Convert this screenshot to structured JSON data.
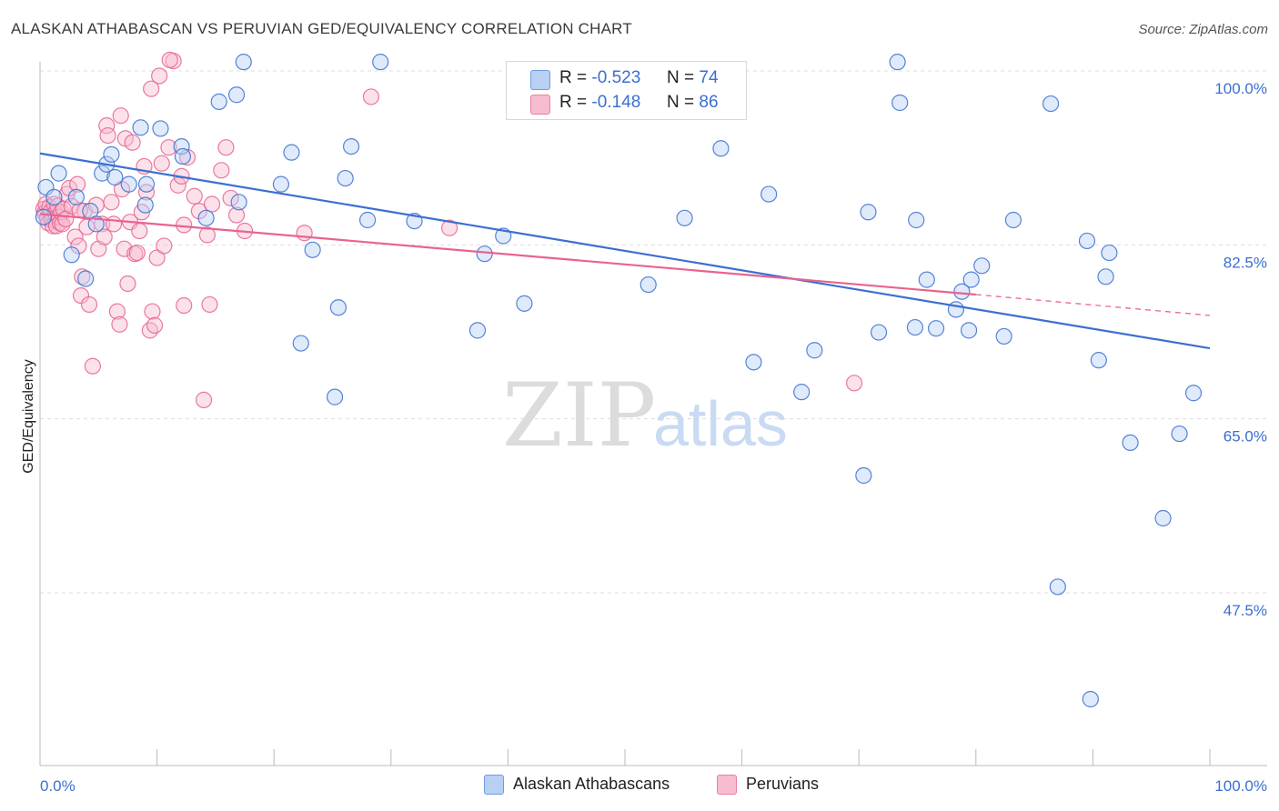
{
  "title": "ALASKAN ATHABASCAN VS PERUVIAN GED/EQUIVALENCY CORRELATION CHART",
  "source": "Source: ZipAtlas.com",
  "legend": {
    "rows": [
      {
        "r_label": "R =",
        "r_value": "-0.523",
        "n_label": "N =",
        "n_value": "74"
      },
      {
        "r_label": "R =",
        "r_value": "-0.148",
        "n_label": "N =",
        "n_value": "86"
      }
    ]
  },
  "bottom_legend": {
    "a": "Alaskan Athabascans",
    "b": "Peruvians"
  },
  "watermark": {
    "zip": "ZIP",
    "atlas": "atlas"
  },
  "colors": {
    "blue": "#3b6fd0",
    "blue_fill": "#b7d0f3",
    "pink": "#e8638f",
    "pink_fill": "#f7bcd0",
    "grid": "#dddddd"
  },
  "chart_data": {
    "type": "scatter",
    "title": "ALASKAN ATHABASCAN VS PERUVIAN GED/EQUIVALENCY CORRELATION CHART",
    "xlabel": "",
    "ylabel": "GED/Equivalency",
    "xlim": [
      0,
      100
    ],
    "ylim": [
      29.5,
      101.5
    ],
    "x_tick_labels": [
      "0.0%",
      "100.0%"
    ],
    "y_ticks": [
      100.0,
      82.5,
      65.0,
      47.5
    ],
    "y_tick_labels": [
      "100.0%",
      "82.5%",
      "65.0%",
      "47.5%"
    ],
    "grid": true,
    "legend_placement": "top-center",
    "series": [
      {
        "name": "Alaskan Athabascans",
        "r": -0.523,
        "n": 74,
        "trend": {
          "x": [
            0,
            100
          ],
          "y": [
            91.7,
            72.1
          ]
        },
        "points": [
          [
            0.3,
            85.3
          ],
          [
            0.5,
            88.3
          ],
          [
            1.2,
            87.3
          ],
          [
            1.6,
            89.7
          ],
          [
            2.7,
            81.5
          ],
          [
            3.1,
            87.3
          ],
          [
            3.9,
            79.1
          ],
          [
            4.3,
            85.9
          ],
          [
            4.8,
            84.6
          ],
          [
            5.3,
            89.7
          ],
          [
            5.7,
            90.6
          ],
          [
            6.1,
            91.6
          ],
          [
            6.4,
            89.3
          ],
          [
            7.6,
            88.6
          ],
          [
            8.6,
            94.3
          ],
          [
            9.0,
            86.5
          ],
          [
            9.1,
            88.6
          ],
          [
            10.3,
            94.2
          ],
          [
            12.1,
            92.4
          ],
          [
            12.2,
            91.4
          ],
          [
            14.2,
            85.2
          ],
          [
            15.3,
            96.9
          ],
          [
            16.8,
            97.6
          ],
          [
            17.0,
            86.8
          ],
          [
            17.4,
            100.9
          ],
          [
            20.6,
            88.6
          ],
          [
            21.5,
            91.8
          ],
          [
            22.3,
            72.6
          ],
          [
            23.3,
            82.0
          ],
          [
            25.2,
            67.2
          ],
          [
            25.5,
            76.2
          ],
          [
            26.1,
            89.2
          ],
          [
            26.6,
            92.4
          ],
          [
            28.0,
            85.0
          ],
          [
            29.1,
            100.9
          ],
          [
            32.0,
            84.9
          ],
          [
            37.4,
            73.9
          ],
          [
            38.0,
            81.6
          ],
          [
            39.6,
            83.4
          ],
          [
            41.4,
            76.6
          ],
          [
            52.0,
            78.5
          ],
          [
            55.1,
            85.2
          ],
          [
            58.2,
            92.2
          ],
          [
            61.0,
            70.7
          ],
          [
            62.3,
            87.6
          ],
          [
            65.1,
            67.7
          ],
          [
            66.2,
            71.9
          ],
          [
            70.4,
            59.3
          ],
          [
            70.8,
            85.8
          ],
          [
            71.7,
            73.7
          ],
          [
            73.3,
            100.9
          ],
          [
            73.5,
            96.8
          ],
          [
            74.8,
            74.2
          ],
          [
            74.9,
            85.0
          ],
          [
            75.8,
            79.0
          ],
          [
            76.6,
            74.1
          ],
          [
            78.3,
            76.0
          ],
          [
            78.8,
            77.8
          ],
          [
            79.4,
            73.9
          ],
          [
            79.6,
            79.0
          ],
          [
            80.5,
            80.4
          ],
          [
            82.4,
            73.3
          ],
          [
            83.2,
            85.0
          ],
          [
            86.4,
            96.7
          ],
          [
            87.0,
            48.1
          ],
          [
            89.5,
            82.9
          ],
          [
            89.8,
            36.8
          ],
          [
            90.5,
            70.9
          ],
          [
            91.1,
            79.3
          ],
          [
            91.4,
            81.7
          ],
          [
            93.2,
            62.6
          ],
          [
            97.4,
            63.5
          ],
          [
            98.6,
            67.6
          ],
          [
            96.0,
            55.0
          ]
        ]
      },
      {
        "name": "Peruvians",
        "r": -0.148,
        "n": 86,
        "trend": {
          "x": [
            0,
            80
          ],
          "y": [
            85.6,
            77.5
          ],
          "dash_to": [
            100,
            75.4
          ]
        },
        "points": [
          [
            0.3,
            86.1
          ],
          [
            0.4,
            85.7
          ],
          [
            0.5,
            86.6
          ],
          [
            0.6,
            85.2
          ],
          [
            0.7,
            84.7
          ],
          [
            0.8,
            86.3
          ],
          [
            0.9,
            85.8
          ],
          [
            1.0,
            85.0
          ],
          [
            1.1,
            84.4
          ],
          [
            1.2,
            86.6
          ],
          [
            1.3,
            85.7
          ],
          [
            1.4,
            84.4
          ],
          [
            1.5,
            86.4
          ],
          [
            1.6,
            85.3
          ],
          [
            1.7,
            84.7
          ],
          [
            1.8,
            85.8
          ],
          [
            1.9,
            84.6
          ],
          [
            2.0,
            86.1
          ],
          [
            2.2,
            85.1
          ],
          [
            2.3,
            87.6
          ],
          [
            2.5,
            88.2
          ],
          [
            2.7,
            86.4
          ],
          [
            3.0,
            83.3
          ],
          [
            3.2,
            88.6
          ],
          [
            3.3,
            82.4
          ],
          [
            3.5,
            77.4
          ],
          [
            3.6,
            79.3
          ],
          [
            3.8,
            85.9
          ],
          [
            4.0,
            84.3
          ],
          [
            4.2,
            76.5
          ],
          [
            4.5,
            70.3
          ],
          [
            4.8,
            86.5
          ],
          [
            5.0,
            82.1
          ],
          [
            5.3,
            84.6
          ],
          [
            5.5,
            83.3
          ],
          [
            5.7,
            94.5
          ],
          [
            5.8,
            93.5
          ],
          [
            6.1,
            86.8
          ],
          [
            6.3,
            84.6
          ],
          [
            6.6,
            75.8
          ],
          [
            6.8,
            74.5
          ],
          [
            6.9,
            95.5
          ],
          [
            7.0,
            88.1
          ],
          [
            7.2,
            82.1
          ],
          [
            7.3,
            93.2
          ],
          [
            7.5,
            78.6
          ],
          [
            7.7,
            84.8
          ],
          [
            7.9,
            92.8
          ],
          [
            8.1,
            81.6
          ],
          [
            8.3,
            81.7
          ],
          [
            8.5,
            83.9
          ],
          [
            8.7,
            85.8
          ],
          [
            8.9,
            90.4
          ],
          [
            9.1,
            87.8
          ],
          [
            9.4,
            73.9
          ],
          [
            9.5,
            98.2
          ],
          [
            9.6,
            75.8
          ],
          [
            9.8,
            74.4
          ],
          [
            10.0,
            81.2
          ],
          [
            10.2,
            99.5
          ],
          [
            10.4,
            90.7
          ],
          [
            10.6,
            82.4
          ],
          [
            11.0,
            92.3
          ],
          [
            11.4,
            101.0
          ],
          [
            11.8,
            88.5
          ],
          [
            12.1,
            89.4
          ],
          [
            12.3,
            84.5
          ],
          [
            12.6,
            91.3
          ],
          [
            12.3,
            76.4
          ],
          [
            13.2,
            87.4
          ],
          [
            13.6,
            85.9
          ],
          [
            14.0,
            66.9
          ],
          [
            14.3,
            83.5
          ],
          [
            14.5,
            76.5
          ],
          [
            14.7,
            86.6
          ],
          [
            15.5,
            90.0
          ],
          [
            15.9,
            92.3
          ],
          [
            16.3,
            87.2
          ],
          [
            16.8,
            85.5
          ],
          [
            17.5,
            83.9
          ],
          [
            22.6,
            83.7
          ],
          [
            28.3,
            97.4
          ],
          [
            35.0,
            84.2
          ],
          [
            11.1,
            101.1
          ],
          [
            69.6,
            68.6
          ],
          [
            3.4,
            86.0
          ]
        ]
      }
    ]
  }
}
